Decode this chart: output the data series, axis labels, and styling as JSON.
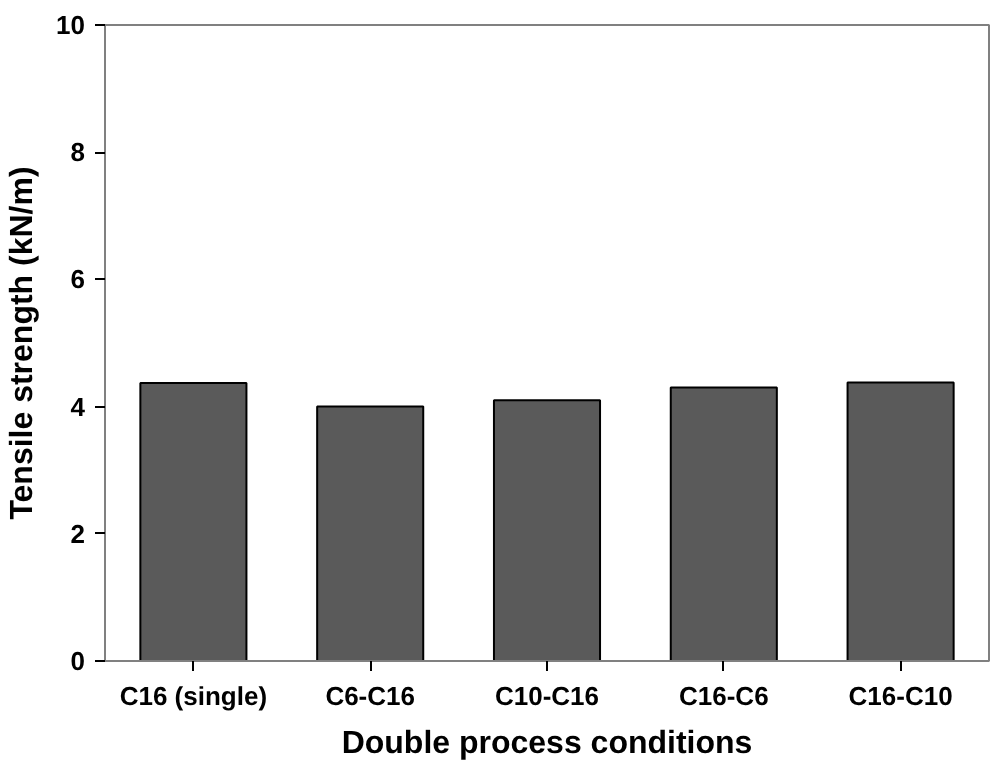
{
  "chart_data": {
    "type": "bar",
    "xlabel": "Double process conditions",
    "ylabel": "Tensile strength (kN/m)",
    "categories": [
      "C16 (single)",
      "C6-C16",
      "C10-C16",
      "C16-C6",
      "C16-C10"
    ],
    "values": [
      4.37,
      4.0,
      4.1,
      4.3,
      4.38
    ],
    "color": "#5a5a5a",
    "ylim": [
      0,
      10
    ],
    "yticks": [
      0,
      2,
      4,
      6,
      8,
      10
    ],
    "grid": false
  }
}
